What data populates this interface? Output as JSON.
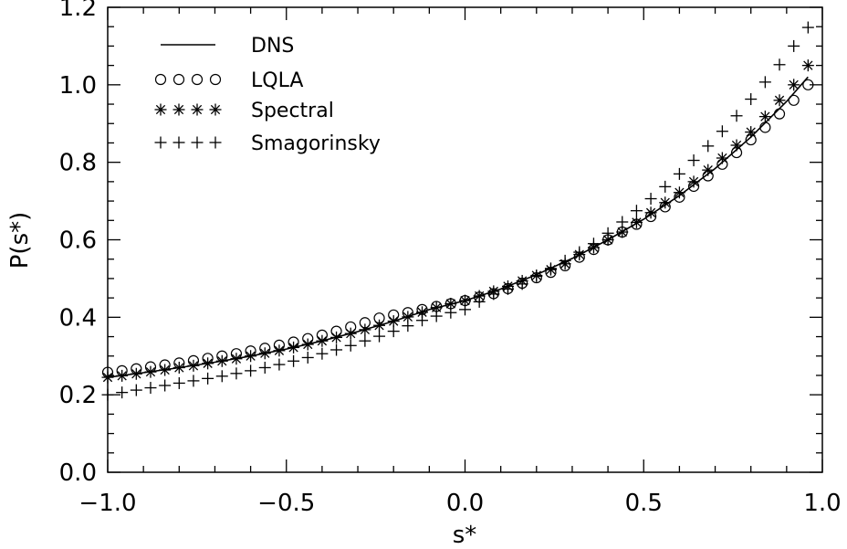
{
  "chart_data": {
    "type": "line",
    "xlabel": "s*",
    "ylabel": "P(s*)",
    "xlim": [
      -1.0,
      1.0
    ],
    "ylim": [
      0.0,
      1.2
    ],
    "x_ticks": [
      "−1.0",
      "−0.5",
      "0.0",
      "0.5",
      "1.0"
    ],
    "y_ticks": [
      "0.0",
      "0.2",
      "0.4",
      "0.6",
      "0.8",
      "1.0",
      "1.2"
    ],
    "grid": false,
    "legend_position": "top-left",
    "series": [
      {
        "name": "DNS",
        "marker": "line",
        "x": [
          -1.0,
          -0.9,
          -0.8,
          -0.7,
          -0.6,
          -0.5,
          -0.4,
          -0.3,
          -0.2,
          -0.1,
          0.0,
          0.1,
          0.2,
          0.3,
          0.4,
          0.5,
          0.6,
          0.7,
          0.8,
          0.9,
          0.96
        ],
        "y": [
          0.245,
          0.257,
          0.27,
          0.284,
          0.3,
          0.318,
          0.339,
          0.363,
          0.39,
          0.42,
          0.443,
          0.473,
          0.51,
          0.552,
          0.6,
          0.653,
          0.714,
          0.784,
          0.865,
          0.957,
          1.02
        ]
      },
      {
        "name": "LQLA",
        "marker": "circle",
        "x": [
          -1.0,
          -0.96,
          -0.92,
          -0.88,
          -0.84,
          -0.8,
          -0.76,
          -0.72,
          -0.68,
          -0.64,
          -0.6,
          -0.56,
          -0.52,
          -0.48,
          -0.44,
          -0.4,
          -0.36,
          -0.32,
          -0.28,
          -0.24,
          -0.2,
          -0.16,
          -0.12,
          -0.08,
          -0.04,
          0.0,
          0.04,
          0.08,
          0.12,
          0.16,
          0.2,
          0.24,
          0.28,
          0.32,
          0.36,
          0.4,
          0.44,
          0.48,
          0.52,
          0.56,
          0.6,
          0.64,
          0.68,
          0.72,
          0.76,
          0.8,
          0.84,
          0.88,
          0.92,
          0.96
        ],
        "y": [
          0.258,
          0.262,
          0.267,
          0.272,
          0.277,
          0.282,
          0.288,
          0.294,
          0.3,
          0.306,
          0.313,
          0.32,
          0.328,
          0.336,
          0.345,
          0.354,
          0.364,
          0.375,
          0.386,
          0.398,
          0.406,
          0.412,
          0.42,
          0.428,
          0.435,
          0.443,
          0.452,
          0.461,
          0.474,
          0.488,
          0.502,
          0.516,
          0.533,
          0.555,
          0.575,
          0.6,
          0.62,
          0.64,
          0.66,
          0.685,
          0.71,
          0.738,
          0.765,
          0.795,
          0.825,
          0.858,
          0.89,
          0.925,
          0.96,
          1.0
        ]
      },
      {
        "name": "Spectral",
        "marker": "asterisk",
        "x": [
          -1.0,
          -0.96,
          -0.92,
          -0.88,
          -0.84,
          -0.8,
          -0.76,
          -0.72,
          -0.68,
          -0.64,
          -0.6,
          -0.56,
          -0.52,
          -0.48,
          -0.44,
          -0.4,
          -0.36,
          -0.32,
          -0.28,
          -0.24,
          -0.2,
          -0.16,
          -0.12,
          -0.08,
          -0.04,
          0.0,
          0.04,
          0.08,
          0.12,
          0.16,
          0.2,
          0.24,
          0.28,
          0.32,
          0.36,
          0.4,
          0.44,
          0.48,
          0.52,
          0.56,
          0.6,
          0.64,
          0.68,
          0.72,
          0.76,
          0.8,
          0.84,
          0.88,
          0.92,
          0.96
        ],
        "y": [
          0.245,
          0.249,
          0.254,
          0.259,
          0.264,
          0.27,
          0.275,
          0.281,
          0.287,
          0.293,
          0.3,
          0.307,
          0.314,
          0.322,
          0.33,
          0.339,
          0.348,
          0.358,
          0.368,
          0.379,
          0.39,
          0.401,
          0.413,
          0.425,
          0.435,
          0.443,
          0.455,
          0.467,
          0.48,
          0.494,
          0.508,
          0.523,
          0.538,
          0.562,
          0.58,
          0.6,
          0.62,
          0.645,
          0.67,
          0.696,
          0.722,
          0.75,
          0.78,
          0.811,
          0.844,
          0.878,
          0.918,
          0.96,
          1.0,
          1.05
        ]
      },
      {
        "name": "Smagorinsky",
        "marker": "plus",
        "x": [
          -1.0,
          -0.96,
          -0.92,
          -0.88,
          -0.84,
          -0.8,
          -0.76,
          -0.72,
          -0.68,
          -0.64,
          -0.6,
          -0.56,
          -0.52,
          -0.48,
          -0.44,
          -0.4,
          -0.36,
          -0.32,
          -0.28,
          -0.24,
          -0.2,
          -0.16,
          -0.12,
          -0.08,
          -0.04,
          0.0,
          0.04,
          0.08,
          0.12,
          0.16,
          0.2,
          0.24,
          0.28,
          0.32,
          0.36,
          0.4,
          0.44,
          0.48,
          0.52,
          0.56,
          0.6,
          0.64,
          0.68,
          0.72,
          0.76,
          0.8,
          0.84,
          0.88,
          0.92,
          0.96
        ],
        "y": [
          0.2,
          0.206,
          0.212,
          0.218,
          0.224,
          0.23,
          0.236,
          0.242,
          0.248,
          0.255,
          0.262,
          0.27,
          0.278,
          0.287,
          0.296,
          0.306,
          0.316,
          0.327,
          0.339,
          0.351,
          0.364,
          0.378,
          0.392,
          0.403,
          0.412,
          0.42,
          0.44,
          0.46,
          0.473,
          0.486,
          0.506,
          0.526,
          0.546,
          0.568,
          0.59,
          0.617,
          0.646,
          0.675,
          0.706,
          0.737,
          0.77,
          0.805,
          0.842,
          0.88,
          0.92,
          0.963,
          1.007,
          1.052,
          1.1,
          1.148
        ]
      }
    ]
  }
}
